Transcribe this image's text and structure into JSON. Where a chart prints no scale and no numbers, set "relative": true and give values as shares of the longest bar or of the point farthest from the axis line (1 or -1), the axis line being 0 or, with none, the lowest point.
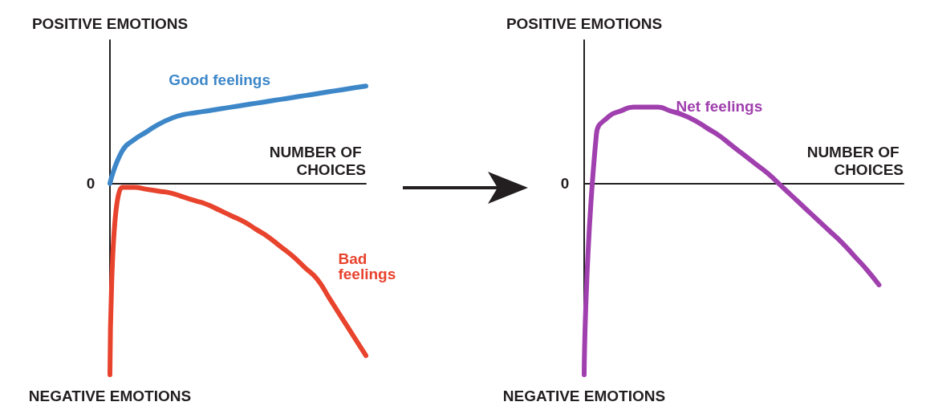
{
  "chart_data": [
    {
      "type": "line",
      "relative": true,
      "marker": "none",
      "ylabel": "POSITIVE EMOTIONS",
      "xlabel": "NUMBER OF CHOICES",
      "annotations": [
        "0",
        "NEGATIVE EMOTIONS"
      ],
      "categories": [
        null,
        null,
        null,
        null,
        null,
        null,
        null,
        null,
        null,
        null,
        null,
        null,
        null,
        null,
        null,
        null,
        null,
        null,
        null,
        null,
        null,
        null
      ],
      "series": [
        {
          "name": "Good feelings",
          "color": "#3d87c9",
          "values": [
            0,
            0.17,
            0.23,
            0.27,
            0.31,
            0.34,
            0.36,
            0.37,
            0.38,
            0.39,
            0.4,
            0.41,
            0.42,
            0.43,
            0.44,
            0.45,
            0.46,
            0.47,
            0.48,
            0.49,
            0.5,
            0.51
          ]
        },
        {
          "name": "Bad feelings",
          "color": "#e8432d",
          "values": [
            -1,
            -0.02,
            -0.02,
            -0.03,
            -0.04,
            -0.05,
            -0.07,
            -0.09,
            -0.11,
            -0.14,
            -0.17,
            -0.2,
            -0.24,
            -0.28,
            -0.33,
            -0.38,
            -0.44,
            -0.5,
            -0.6,
            -0.7,
            -0.8,
            -0.9
          ]
        }
      ]
    },
    {
      "type": "line",
      "relative": true,
      "marker": "none",
      "ylabel": "POSITIVE EMOTIONS",
      "xlabel": "NUMBER OF CHOICES",
      "annotations": [
        "0",
        "NEGATIVE EMOTIONS"
      ],
      "categories": [
        null,
        null,
        null,
        null,
        null,
        null,
        null,
        null,
        null,
        null,
        null,
        null,
        null,
        null,
        null,
        null,
        null,
        null,
        null,
        null,
        null,
        null,
        null,
        null,
        null,
        null,
        null
      ],
      "series": [
        {
          "name": "Net feelings",
          "color": "#a03fae",
          "values": [
            -1,
            0.26,
            0.35,
            0.38,
            0.4,
            0.4,
            0.4,
            0.38,
            0.36,
            0.33,
            0.29,
            0.25,
            0.2,
            0.15,
            0.1,
            0.05,
            -0.01,
            -0.07,
            -0.13,
            -0.19,
            -0.25,
            -0.31,
            -0.38,
            -0.45,
            -0.53,
            null,
            null
          ]
        }
      ]
    }
  ]
}
